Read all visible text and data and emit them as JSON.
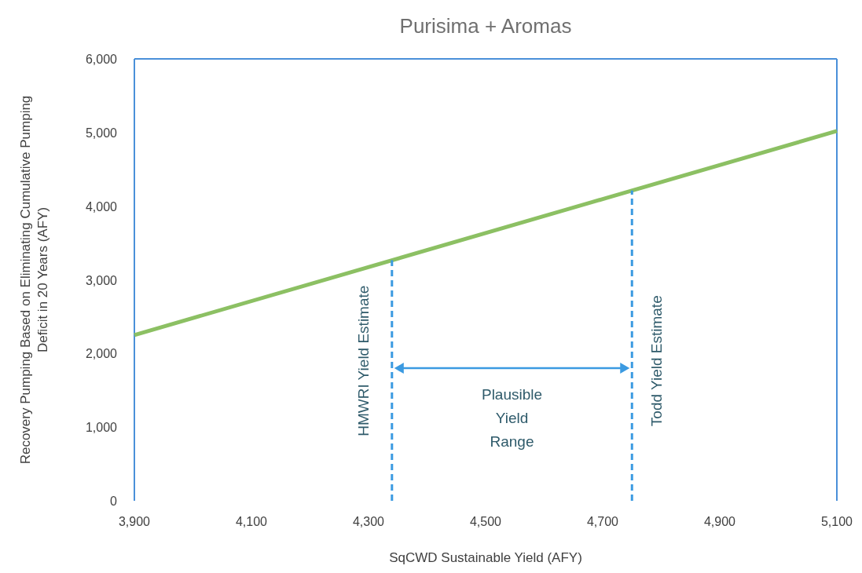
{
  "chart_data": {
    "type": "line",
    "title": "Purisima + Aromas",
    "xlabel": "SqCWD Sustainable Yield (AFY)",
    "ylabel": "Recovery Pumping Based on Eliminating Cumulative Pumping Deficit in 20 Years (AFY)",
    "x": [
      3900,
      5100
    ],
    "series": [
      {
        "color": "#8cc063",
        "values": [
          2250,
          5020
        ]
      }
    ],
    "xlim": [
      3900,
      5100
    ],
    "xticks": [
      {
        "value": 3900,
        "label": "3,900"
      },
      {
        "value": 4100,
        "label": "4,100"
      },
      {
        "value": 4300,
        "label": "4,300"
      },
      {
        "value": 4500,
        "label": "4,500"
      },
      {
        "value": 4700,
        "label": "4,700"
      },
      {
        "value": 4900,
        "label": "4,900"
      },
      {
        "value": 5100,
        "label": "5,100"
      }
    ],
    "ylim": [
      0,
      6000
    ],
    "yticks": [
      0,
      {
        "value": 1000,
        "label": "1,000"
      },
      {
        "value": 2000,
        "label": "2,000"
      },
      {
        "value": 3000,
        "label": "3,000"
      },
      {
        "value": 4000,
        "label": "4,000"
      },
      {
        "value": 5000,
        "label": "5,000"
      },
      {
        "value": 6000,
        "label": "6,000"
      }
    ],
    "ref_lines": [
      {
        "axis": "x",
        "value": 4340,
        "label": "HMWRI Yield Estimate",
        "color": "#3b9ae1",
        "line_style": "dashed"
      },
      {
        "axis": "x",
        "value": 4750,
        "label": "Todd Yield Estimate",
        "color": "#3b9ae1",
        "line_style": "dashed"
      }
    ],
    "annotations": [
      "Plausible Yield Range"
    ],
    "grid": false,
    "marker": "none",
    "line_style": "solid"
  }
}
